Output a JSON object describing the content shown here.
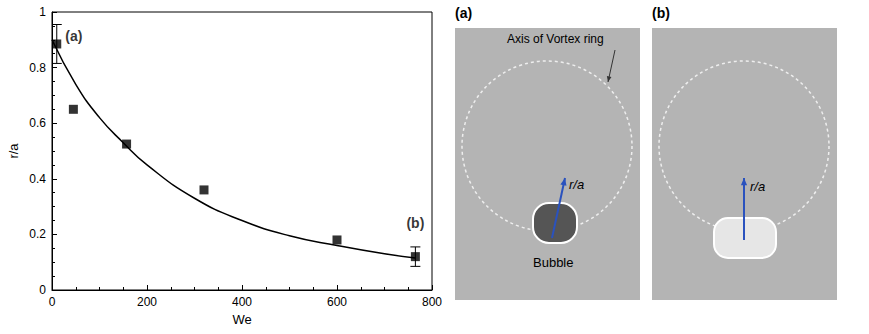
{
  "chart_data": {
    "type": "scatter",
    "xlabel": "We",
    "ylabel": "r/a",
    "xlim": [
      0,
      800
    ],
    "xticks": [
      0,
      200,
      400,
      600,
      800
    ],
    "ylim": [
      0,
      1
    ],
    "yticks": [
      0,
      0.2,
      0.4,
      0.6,
      0.8,
      1
    ],
    "grid": false,
    "series": [
      {
        "type": "scatter",
        "marker": "square",
        "color": "#000000",
        "x": [
          10,
          45,
          157,
          320,
          600,
          765
        ],
        "values": [
          0.885,
          0.65,
          0.525,
          0.36,
          0.18,
          0.12
        ],
        "errors": [
          0.07,
          null,
          null,
          null,
          null,
          0.035
        ],
        "point_labels": [
          "(a)",
          null,
          null,
          null,
          null,
          "(b)"
        ]
      },
      {
        "type": "line",
        "line_style": "solid",
        "color": "#000000",
        "x": [
          0,
          50,
          100,
          150,
          200,
          300,
          400,
          500,
          600,
          700,
          765
        ],
        "values": [
          0.9,
          0.74,
          0.62,
          0.53,
          0.45,
          0.33,
          0.25,
          0.195,
          0.16,
          0.13,
          0.115
        ]
      }
    ]
  },
  "panels": [
    {
      "label": "(a)",
      "ring_label": "Axis of Vortex ring",
      "arrow_label": "r/a",
      "bubble_label": "Bubble"
    },
    {
      "label": "(b)",
      "arrow_label": "r/a"
    }
  ]
}
